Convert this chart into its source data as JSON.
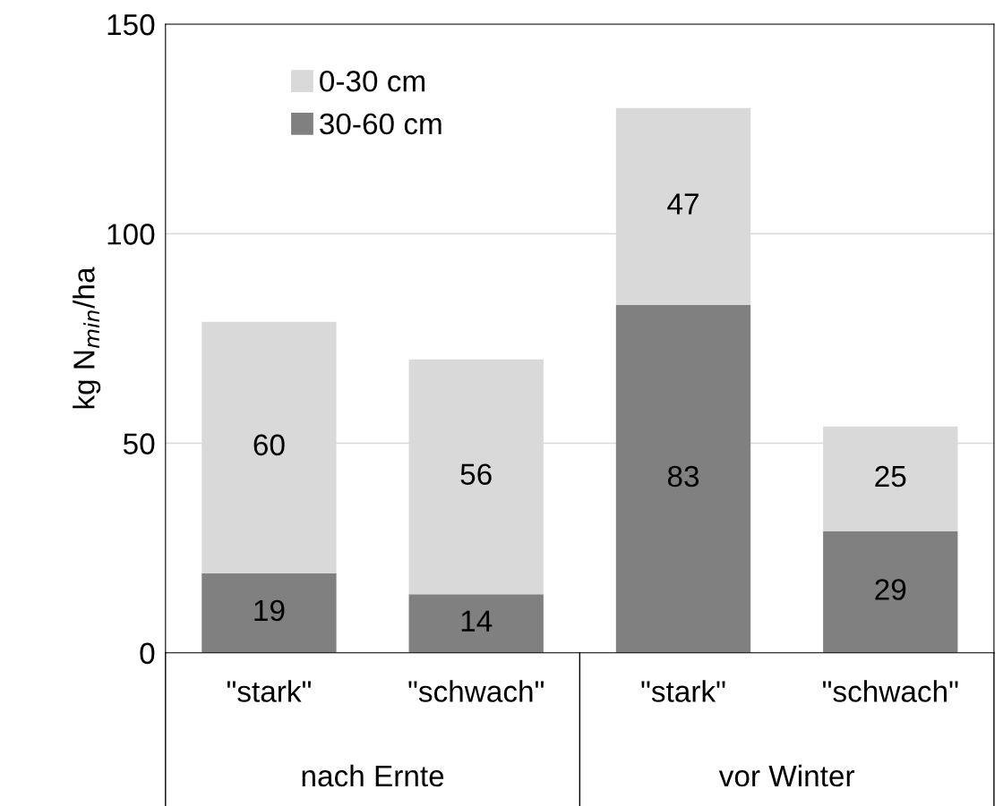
{
  "chart_data": {
    "type": "bar",
    "stacked": true,
    "categories": [
      "\"stark\"",
      "\"schwach\"",
      "\"stark\"",
      "\"schwach\""
    ],
    "series": [
      {
        "name": "30-60 cm",
        "color": "#808080",
        "values": [
          19,
          14,
          83,
          29
        ]
      },
      {
        "name": "0-30 cm",
        "color": "#d9d9d9",
        "values": [
          60,
          56,
          47,
          25
        ]
      }
    ],
    "ylabel": "kg N$_{min}$/ha",
    "annotations": [
      "nach Ernte",
      "vor Winter"
    ],
    "ylim": [
      0,
      150
    ],
    "yticks": [
      0,
      50,
      100,
      150
    ],
    "grid": "y",
    "legend": "top left",
    "data_labels": true
  }
}
